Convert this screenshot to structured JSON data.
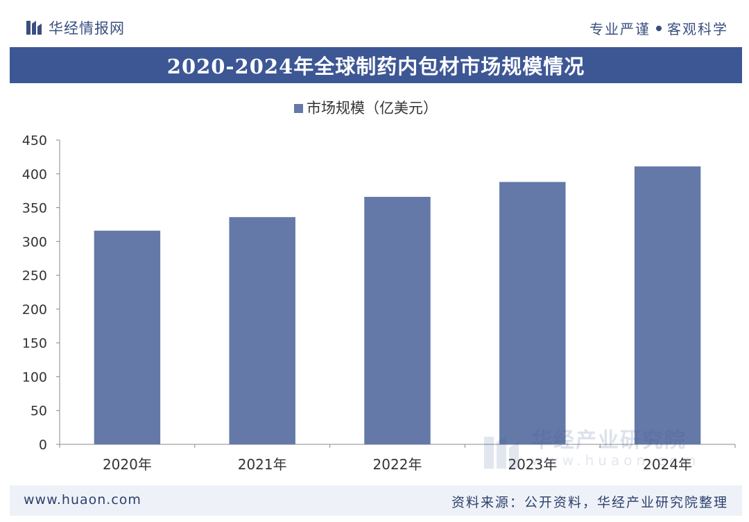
{
  "header": {
    "brand_name": "华经情报网",
    "tagline_left": "专业严谨",
    "tagline_right": "客观科学"
  },
  "title": "2020-2024年全球制药内包材市场规模情况",
  "colors": {
    "accent": "#3d5795",
    "bar": "#6479a8",
    "footer_bg": "#eef2f8"
  },
  "chart_data": {
    "type": "bar",
    "title": "2020-2024年全球制药内包材市场规模情况",
    "categories": [
      "2020年",
      "2021年",
      "2022年",
      "2023年",
      "2024年"
    ],
    "series": [
      {
        "name": "市场规模（亿美元）",
        "values": [
          316,
          336,
          366,
          388,
          411
        ]
      }
    ],
    "ylim": [
      0,
      450
    ],
    "yticks": [
      0,
      50,
      100,
      150,
      200,
      250,
      300,
      350,
      400,
      450
    ],
    "xlabel": "",
    "ylabel": "",
    "legend_position": "top-center",
    "grid": false
  },
  "watermark": {
    "brand": "华经产业研究院",
    "domain": "www.huaon.com"
  },
  "footer": {
    "url": "www.huaon.com",
    "source": "资料来源：公开资料，华经产业研究院整理"
  }
}
